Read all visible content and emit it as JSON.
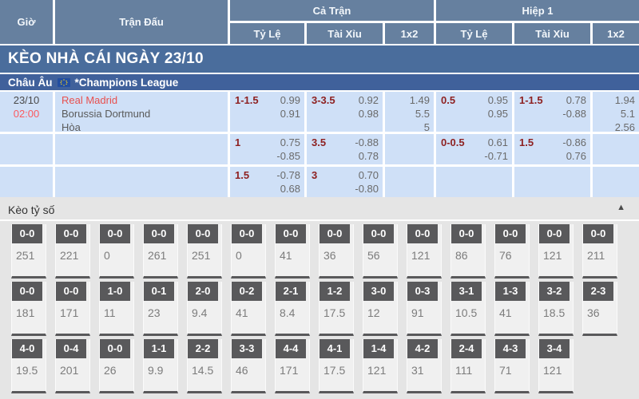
{
  "colors": {
    "header_bg": "#66809f",
    "banner_bg": "#4a6d9c",
    "league_bg": "#40619b",
    "row_bg": "#cfe0f7",
    "handicap_line_color": "#8e2121",
    "odds_value_color": "#6a6a6a",
    "home_team_color": "#e8504e",
    "time_color": "#fb5a5f",
    "score_button_bg": "#59595b",
    "score_cell_bg": "#f0f0f0",
    "section_bg": "#e5e5e5"
  },
  "header": {
    "time": "Giờ",
    "match": "Trận Đấu",
    "full_time": "Cả Trận",
    "first_half": "Hiệp 1",
    "sub_ft": [
      "Tỷ Lệ",
      "Tài Xỉu",
      "1x2"
    ],
    "sub_h1": [
      "Tỷ Lệ",
      "Tài Xỉu",
      "1x2"
    ]
  },
  "banner": {
    "title": "KÈO NHÀ CÁI NGÀY 23/10"
  },
  "league": {
    "region": "Châu Âu",
    "flag_icon": "eu-flag",
    "name": "*Champions League"
  },
  "match": {
    "date": "23/10",
    "time": "02:00",
    "home": "Real Madrid",
    "away": "Borussia Dortmund",
    "draw": "Hòa"
  },
  "odds": [
    {
      "ft_hdp": {
        "line": "1-1.5",
        "a": "0.99",
        "b": "0.91"
      },
      "ft_ou": {
        "line": "3-3.5",
        "a": "0.92",
        "b": "0.98"
      },
      "ft_1x2": {
        "a": "1.49",
        "b": "5.5",
        "c": "5"
      },
      "h1_hdp": {
        "line": "0.5",
        "a": "0.95",
        "b": "0.95"
      },
      "h1_ou": {
        "line": "1-1.5",
        "a": "0.78",
        "b": "-0.88"
      },
      "h1_1x2": {
        "a": "1.94",
        "b": "5.1",
        "c": "2.56"
      }
    },
    {
      "ft_hdp": {
        "line": "1",
        "a": "0.75",
        "b": "-0.85"
      },
      "ft_ou": {
        "line": "3.5",
        "a": "-0.88",
        "b": "0.78"
      },
      "h1_hdp": {
        "line": "0-0.5",
        "a": "0.61",
        "b": "-0.71"
      },
      "h1_ou": {
        "line": "1.5",
        "a": "-0.86",
        "b": "0.76"
      }
    },
    {
      "ft_hdp": {
        "line": "1.5",
        "a": "-0.78",
        "b": "0.68"
      },
      "ft_ou": {
        "line": "3",
        "a": "0.70",
        "b": "-0.80"
      }
    }
  ],
  "score_section": {
    "title": "Kèo tỷ số",
    "collapse_icon": "▲",
    "rows": [
      [
        {
          "score": "0-0",
          "odds": "251"
        },
        {
          "score": "0-0",
          "odds": "221"
        },
        {
          "score": "0-0",
          "odds": "0"
        },
        {
          "score": "0-0",
          "odds": "261"
        },
        {
          "score": "0-0",
          "odds": "251"
        },
        {
          "score": "0-0",
          "odds": "0"
        },
        {
          "score": "0-0",
          "odds": "41"
        },
        {
          "score": "0-0",
          "odds": "36"
        },
        {
          "score": "0-0",
          "odds": "56"
        },
        {
          "score": "0-0",
          "odds": "121"
        },
        {
          "score": "0-0",
          "odds": "86"
        },
        {
          "score": "0-0",
          "odds": "76"
        },
        {
          "score": "0-0",
          "odds": "121"
        },
        {
          "score": "0-0",
          "odds": "211"
        }
      ],
      [
        {
          "score": "0-0",
          "odds": "181"
        },
        {
          "score": "0-0",
          "odds": "171"
        },
        {
          "score": "1-0",
          "odds": "11"
        },
        {
          "score": "0-1",
          "odds": "23"
        },
        {
          "score": "2-0",
          "odds": "9.4"
        },
        {
          "score": "0-2",
          "odds": "41"
        },
        {
          "score": "2-1",
          "odds": "8.4"
        },
        {
          "score": "1-2",
          "odds": "17.5"
        },
        {
          "score": "3-0",
          "odds": "12"
        },
        {
          "score": "0-3",
          "odds": "91"
        },
        {
          "score": "3-1",
          "odds": "10.5"
        },
        {
          "score": "1-3",
          "odds": "41"
        },
        {
          "score": "3-2",
          "odds": "18.5"
        },
        {
          "score": "2-3",
          "odds": "36"
        }
      ],
      [
        {
          "score": "4-0",
          "odds": "19.5"
        },
        {
          "score": "0-4",
          "odds": "201"
        },
        {
          "score": "0-0",
          "odds": "26"
        },
        {
          "score": "1-1",
          "odds": "9.9"
        },
        {
          "score": "2-2",
          "odds": "14.5"
        },
        {
          "score": "3-3",
          "odds": "46"
        },
        {
          "score": "4-4",
          "odds": "171"
        },
        {
          "score": "4-1",
          "odds": "17.5"
        },
        {
          "score": "1-4",
          "odds": "121"
        },
        {
          "score": "4-2",
          "odds": "31"
        },
        {
          "score": "2-4",
          "odds": "111"
        },
        {
          "score": "4-3",
          "odds": "71"
        },
        {
          "score": "3-4",
          "odds": "121"
        }
      ]
    ]
  }
}
